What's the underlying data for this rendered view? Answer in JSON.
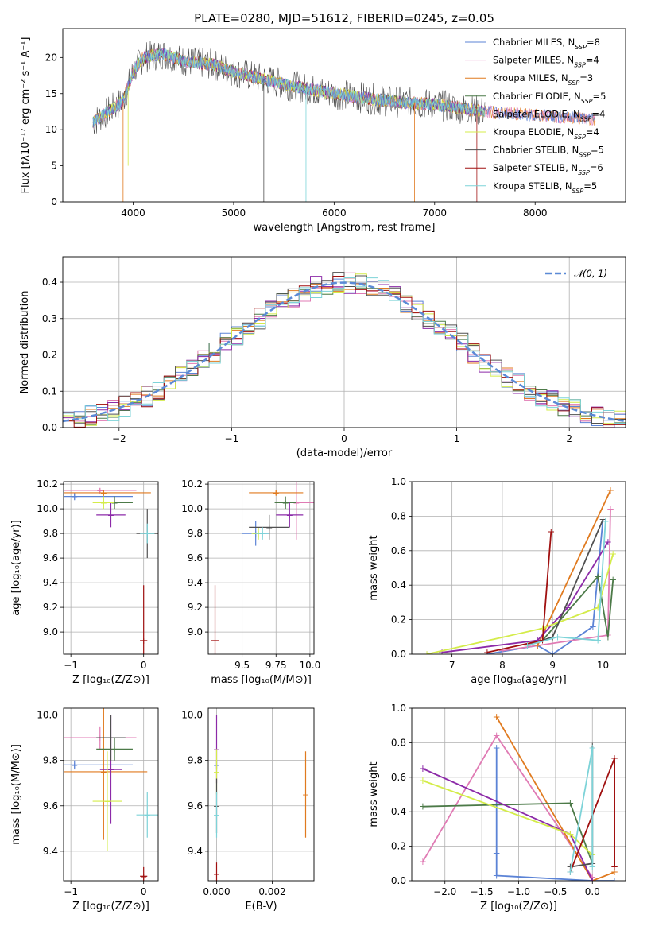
{
  "colors": {
    "chabrier_miles": "#5b83d6",
    "salpeter_miles": "#e07bb4",
    "kroupa_miles": "#e07a1f",
    "chabrier_elodie": "#4c7a48",
    "salpeter_elodie": "#8c2aa8",
    "kroupa_elodie": "#d4ec4a",
    "chabrier_stelib": "#505050",
    "salpeter_stelib": "#a01010",
    "kroupa_stelib": "#7dd3d8",
    "normal": "#5b8ad6"
  },
  "chart_data": [
    {
      "id": "spectrum",
      "type": "line",
      "title": "PLATE=0280, MJD=51612, FIBERID=0245, z=0.05",
      "xlabel": "wavelength [Angstrom, rest frame]",
      "ylabel": "Flux [fλ10⁻¹⁷ erg cm⁻² s⁻¹ A⁻¹]",
      "xlim": [
        3300,
        8900
      ],
      "ylim": [
        0,
        24
      ],
      "xticks": [
        "4000",
        "5000",
        "6000",
        "7000",
        "8000"
      ],
      "yticks": [
        "0",
        "5",
        "10",
        "15",
        "20"
      ],
      "legend_position": "top-right",
      "legend": [
        {
          "key": "chabrier_miles",
          "base": "Chabrier MILES, N",
          "sub": "SSP",
          "tail": "=8"
        },
        {
          "key": "salpeter_miles",
          "base": "Salpeter MILES, N",
          "sub": "SSP",
          "tail": "=4"
        },
        {
          "key": "kroupa_miles",
          "base": "Kroupa MILES, N",
          "sub": "SSP",
          "tail": "=3"
        },
        {
          "key": "chabrier_elodie",
          "base": "Chabrier ELODIE, N",
          "sub": "SSP",
          "tail": "=5"
        },
        {
          "key": "salpeter_elodie",
          "base": "Salpeter ELODIE, N",
          "sub": "SSP",
          "tail": "=4"
        },
        {
          "key": "kroupa_elodie",
          "base": "Kroupa ELODIE, N",
          "sub": "SSP",
          "tail": "=4"
        },
        {
          "key": "chabrier_stelib",
          "base": "Chabrier STELIB, N",
          "sub": "SSP",
          "tail": "=5"
        },
        {
          "key": "salpeter_stelib",
          "base": "Salpeter STELIB, N",
          "sub": "SSP",
          "tail": "=6"
        },
        {
          "key": "kroupa_stelib",
          "base": "Kroupa STELIB, N",
          "sub": "SSP",
          "tail": "=5"
        }
      ],
      "continuum": [
        [
          3600,
          11
        ],
        [
          3750,
          12.5
        ],
        [
          3900,
          14
        ],
        [
          4000,
          18
        ],
        [
          4100,
          20
        ],
        [
          4300,
          20.5
        ],
        [
          4500,
          19.5
        ],
        [
          4800,
          19
        ],
        [
          5000,
          18
        ],
        [
          5300,
          17
        ],
        [
          5600,
          16
        ],
        [
          6000,
          15
        ],
        [
          6500,
          14
        ],
        [
          7000,
          13.5
        ],
        [
          7500,
          12.5
        ],
        [
          8000,
          12
        ],
        [
          8500,
          11.5
        ]
      ]
    },
    {
      "id": "residuals",
      "type": "step",
      "xlabel": "(data-model)/error",
      "ylabel": "Normed distribution",
      "xlim": [
        -2.5,
        2.5
      ],
      "ylim": [
        0,
        0.47
      ],
      "xticks": [
        "−2",
        "−1",
        "0",
        "1",
        "2"
      ],
      "yticks": [
        "0.0",
        "0.1",
        "0.2",
        "0.3",
        "0.4"
      ],
      "normal_label": "𝒩(0, 1)",
      "legend_position": "top-right",
      "grid": true
    },
    {
      "id": "age_vs_Z",
      "type": "errorbar",
      "xlabel": "Z [log₁₀(Z/Z⊙)]",
      "ylabel": "age  [log₁₀(age/yr)]",
      "xlim": [
        -1.1,
        0.2
      ],
      "ylim": [
        8.82,
        10.22
      ],
      "xticks": [
        "−1",
        "0"
      ],
      "yticks": [
        "9.0",
        "9.2",
        "9.4",
        "9.6",
        "9.8",
        "10.0",
        "10.2"
      ],
      "points": [
        {
          "key": "chabrier_miles",
          "x": -0.95,
          "y": 10.1,
          "xerr": 0.8,
          "yerr": 0.03
        },
        {
          "key": "salpeter_miles",
          "x": -0.6,
          "y": 10.15,
          "xerr": 0.5,
          "yerr": 0.02
        },
        {
          "key": "kroupa_miles",
          "x": -0.55,
          "y": 10.13,
          "xerr": 0.65,
          "yerr": 0.02
        },
        {
          "key": "chabrier_elodie",
          "x": -0.4,
          "y": 10.05,
          "xerr": 0.25,
          "yerr": 0.05
        },
        {
          "key": "salpeter_elodie",
          "x": -0.45,
          "y": 9.95,
          "xerr": 0.2,
          "yerr": 0.1
        },
        {
          "key": "kroupa_elodie",
          "x": -0.55,
          "y": 10.05,
          "xerr": 0.15,
          "yerr": 0.05
        },
        {
          "key": "chabrier_stelib",
          "x": 0.05,
          "y": 9.8,
          "xerr": 0.15,
          "yerr": 0.2
        },
        {
          "key": "salpeter_stelib",
          "x": 0.0,
          "y": 8.93,
          "xerr": 0.05,
          "yerr": 0.45
        },
        {
          "key": "kroupa_stelib",
          "x": 0.05,
          "y": 9.8,
          "xerr": 0.1,
          "yerr": 0.08
        }
      ]
    },
    {
      "id": "age_vs_mass",
      "type": "errorbar",
      "xlabel": "mass [log₁₀(M/M⊙)]",
      "xlim": [
        9.25,
        10.03
      ],
      "ylim": [
        8.82,
        10.22
      ],
      "xticks": [
        "9.5",
        "9.75",
        "10.0"
      ],
      "yticks": [
        "9.0",
        "9.2",
        "9.4",
        "9.6",
        "9.8",
        "10.0",
        "10.2"
      ],
      "points": [
        {
          "key": "chabrier_miles",
          "x": 9.6,
          "y": 9.8,
          "xerr": 0.1,
          "yerr": 0.1
        },
        {
          "key": "salpeter_miles",
          "x": 9.9,
          "y": 10.05,
          "xerr": 0.15,
          "yerr": 0.3
        },
        {
          "key": "kroupa_miles",
          "x": 9.75,
          "y": 10.13,
          "xerr": 0.2,
          "yerr": 0.02
        },
        {
          "key": "chabrier_elodie",
          "x": 9.82,
          "y": 10.05,
          "xerr": 0.08,
          "yerr": 0.05
        },
        {
          "key": "salpeter_elodie",
          "x": 9.85,
          "y": 9.95,
          "xerr": 0.1,
          "yerr": 0.1
        },
        {
          "key": "kroupa_elodie",
          "x": 9.62,
          "y": 9.8,
          "xerr": 0.05,
          "yerr": 0.05
        },
        {
          "key": "chabrier_stelib",
          "x": 9.7,
          "y": 9.85,
          "xerr": 0.15,
          "yerr": 0.1
        },
        {
          "key": "salpeter_stelib",
          "x": 9.3,
          "y": 8.93,
          "xerr": 0.03,
          "yerr": 0.45
        },
        {
          "key": "kroupa_stelib",
          "x": 9.65,
          "y": 9.8,
          "xerr": 0.05,
          "yerr": 0.05
        }
      ]
    },
    {
      "id": "weight_vs_age",
      "type": "line",
      "xlabel": "age  [log₁₀(age/yr)]",
      "ylabel": "mass weight",
      "xlim": [
        6.2,
        10.45
      ],
      "ylim": [
        0,
        1
      ],
      "xticks": [
        "7",
        "8",
        "9",
        "10"
      ],
      "yticks": [
        "0.0",
        "0.2",
        "0.4",
        "0.6",
        "0.8",
        "1.0"
      ],
      "series": [
        {
          "key": "chabrier_miles",
          "x": [
            7.7,
            8.7,
            9.0,
            9.8,
            10.0
          ],
          "y": [
            0,
            0.05,
            0,
            0.16,
            0.78
          ]
        },
        {
          "key": "salpeter_miles",
          "x": [
            8.0,
            10.1,
            10.15
          ],
          "y": [
            0.02,
            0.11,
            0.84
          ]
        },
        {
          "key": "kroupa_miles",
          "x": [
            8.7,
            10.15
          ],
          "y": [
            0.05,
            0.95
          ]
        },
        {
          "key": "chabrier_elodie",
          "x": [
            8.8,
            9.9,
            10.1,
            10.2
          ],
          "y": [
            0.08,
            0.45,
            0.1,
            0.43
          ]
        },
        {
          "key": "salpeter_elodie",
          "x": [
            6.8,
            8.7,
            9.3,
            10.1
          ],
          "y": [
            0.01,
            0.08,
            0.27,
            0.65
          ]
        },
        {
          "key": "kroupa_elodie",
          "x": [
            6.5,
            8.8,
            9.9,
            10.2
          ],
          "y": [
            0.0,
            0.15,
            0.27,
            0.58
          ]
        },
        {
          "key": "chabrier_stelib",
          "x": [
            8.5,
            9.0,
            10.0
          ],
          "y": [
            0.05,
            0.1,
            0.78
          ]
        },
        {
          "key": "salpeter_stelib",
          "x": [
            7.7,
            8.8,
            8.97
          ],
          "y": [
            0.01,
            0.08,
            0.71
          ]
        },
        {
          "key": "kroupa_stelib",
          "x": [
            8.5,
            9.1,
            9.9,
            10.05
          ],
          "y": [
            0.05,
            0.1,
            0.08,
            0.77
          ]
        }
      ]
    },
    {
      "id": "mass_vs_Z",
      "type": "errorbar",
      "xlabel": "Z [log₁₀(Z/Z⊙)]",
      "ylabel": "mass [log₁₀(M/M⊙)]",
      "xlim": [
        -1.1,
        0.2
      ],
      "ylim": [
        9.27,
        10.03
      ],
      "xticks": [
        "−1",
        "0"
      ],
      "yticks": [
        "9.4",
        "9.6",
        "9.8",
        "10.0"
      ],
      "points": [
        {
          "key": "chabrier_miles",
          "x": -0.95,
          "y": 9.78,
          "xerr": 0.8,
          "yerr": 0.02
        },
        {
          "key": "salpeter_miles",
          "x": -0.6,
          "y": 9.9,
          "xerr": 0.5,
          "yerr": 0.05
        },
        {
          "key": "kroupa_miles",
          "x": -0.55,
          "y": 9.75,
          "xerr": 0.6,
          "yerr": 0.3
        },
        {
          "key": "chabrier_elodie",
          "x": -0.4,
          "y": 9.85,
          "xerr": 0.25,
          "yerr": 0.05
        },
        {
          "key": "salpeter_elodie",
          "x": -0.45,
          "y": 9.76,
          "xerr": 0.15,
          "yerr": 0.24
        },
        {
          "key": "kroupa_elodie",
          "x": -0.5,
          "y": 9.62,
          "xerr": 0.2,
          "yerr": 0.22
        },
        {
          "key": "chabrier_stelib",
          "x": -0.45,
          "y": 9.9,
          "xerr": 0.2,
          "yerr": 0.1
        },
        {
          "key": "salpeter_stelib",
          "x": 0.0,
          "y": 9.29,
          "xerr": 0.05,
          "yerr": 0.04
        },
        {
          "key": "kroupa_stelib",
          "x": 0.05,
          "y": 9.56,
          "xerr": 0.15,
          "yerr": 0.1
        }
      ]
    },
    {
      "id": "mass_vs_ebv",
      "type": "errorbar",
      "xlabel": "E(B-V)",
      "xlim": [
        -0.0003,
        0.0035
      ],
      "ylim": [
        9.27,
        10.03
      ],
      "xticks": [
        "0.000",
        "0.002"
      ],
      "yticks": [
        "9.4",
        "9.6",
        "9.8",
        "10.0"
      ],
      "points": [
        {
          "key": "chabrier_miles",
          "x": 0.0,
          "y": 9.78,
          "xerr": 0,
          "yerr": 0.02
        },
        {
          "key": "salpeter_elodie",
          "x": 0.0,
          "y": 9.85,
          "xerr": 0,
          "yerr": 0.15
        },
        {
          "key": "kroupa_elodie",
          "x": 0.0,
          "y": 9.75,
          "xerr": 0,
          "yerr": 0.1
        },
        {
          "key": "chabrier_stelib",
          "x": 0.0,
          "y": 9.6,
          "xerr": 0,
          "yerr": 0.12
        },
        {
          "key": "salpeter_stelib",
          "x": 0.0,
          "y": 9.3,
          "xerr": 0,
          "yerr": 0.05
        },
        {
          "key": "kroupa_stelib",
          "x": 0.0,
          "y": 9.56,
          "xerr": 0,
          "yerr": 0.1
        },
        {
          "key": "kroupa_miles",
          "x": 0.0032,
          "y": 9.65,
          "xerr": 0,
          "yerr": 0.19
        }
      ]
    },
    {
      "id": "weight_vs_Z",
      "type": "line",
      "xlabel": "Z [log₁₀(Z/Z⊙)]",
      "ylabel": "mass weight",
      "xlim": [
        -2.45,
        0.45
      ],
      "ylim": [
        0,
        1
      ],
      "xticks": [
        "−2.0",
        "−1.5",
        "−1.0",
        "−0.5",
        "0.0"
      ],
      "yticks": [
        "0.0",
        "0.2",
        "0.4",
        "0.6",
        "0.8",
        "1.0"
      ],
      "series": [
        {
          "key": "chabrier_miles",
          "x": [
            -1.3,
            -1.3,
            -1.3,
            0.0,
            0.3
          ],
          "y": [
            0.77,
            0.16,
            0.03,
            0,
            0.0
          ]
        },
        {
          "key": "salpeter_miles",
          "x": [
            -2.3,
            -1.3,
            0.0
          ],
          "y": [
            0.11,
            0.84,
            0.02
          ]
        },
        {
          "key": "kroupa_miles",
          "x": [
            -1.3,
            0.0,
            0.3
          ],
          "y": [
            0.95,
            0.0,
            0.05
          ]
        },
        {
          "key": "chabrier_elodie",
          "x": [
            -2.3,
            -0.3,
            0.0
          ],
          "y": [
            0.43,
            0.45,
            0.1
          ]
        },
        {
          "key": "salpeter_elodie",
          "x": [
            -2.3,
            -0.3,
            0.0
          ],
          "y": [
            0.65,
            0.27,
            0.0
          ]
        },
        {
          "key": "kroupa_elodie",
          "x": [
            -2.3,
            -0.3,
            0.0
          ],
          "y": [
            0.58,
            0.27,
            0.15
          ]
        },
        {
          "key": "chabrier_stelib",
          "x": [
            -0.3,
            0.0,
            0.0
          ],
          "y": [
            0.08,
            0.1,
            0.78
          ]
        },
        {
          "key": "salpeter_stelib",
          "x": [
            -0.3,
            0.3,
            0.3
          ],
          "y": [
            0.05,
            0.71,
            0.08
          ]
        },
        {
          "key": "kroupa_stelib",
          "x": [
            -0.3,
            0.0,
            0.0
          ],
          "y": [
            0.05,
            0.77,
            0.08
          ]
        }
      ]
    }
  ]
}
